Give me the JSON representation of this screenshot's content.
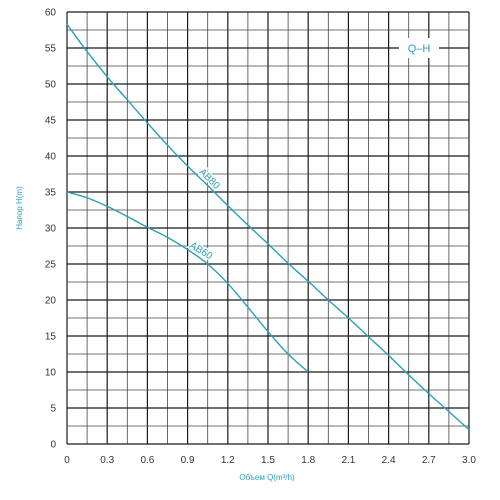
{
  "chart_data": {
    "type": "line",
    "title": "",
    "xlabel": "Объем Q(m³/h)",
    "ylabel": "Напор H(m)",
    "xlim": [
      0,
      3.0
    ],
    "ylim": [
      0,
      60
    ],
    "x_ticks": [
      "0",
      "0.3",
      "0.6",
      "0.9",
      "1.2",
      "1.5",
      "1.8",
      "2.1",
      "2.4",
      "2.7",
      "3.0"
    ],
    "x_tick_values": [
      0,
      0.3,
      0.6,
      0.9,
      1.2,
      1.5,
      1.8,
      2.1,
      2.4,
      2.7,
      3.0
    ],
    "y_ticks": [
      "0",
      "5",
      "10",
      "15",
      "20",
      "25",
      "30",
      "35",
      "40",
      "45",
      "50",
      "55",
      "60"
    ],
    "y_tick_values": [
      0,
      5,
      10,
      15,
      20,
      25,
      30,
      35,
      40,
      45,
      50,
      55,
      60
    ],
    "grid": true,
    "legend": {
      "label": "Q–H",
      "position": "top-right"
    },
    "series": [
      {
        "name": "AB80",
        "x": [
          0,
          0.15,
          0.3,
          0.45,
          0.6,
          0.75,
          0.9,
          1.05,
          1.2,
          1.35,
          1.5,
          1.65,
          1.8,
          1.95,
          2.1,
          2.25,
          2.4,
          2.55,
          2.7,
          2.85,
          3.0
        ],
        "y": [
          58.3,
          54.5,
          51,
          47.8,
          44.6,
          41.5,
          38.6,
          35.9,
          33.1,
          30.4,
          27.8,
          25.1,
          22.6,
          20,
          17.5,
          14.9,
          12.3,
          9.6,
          7,
          4.5,
          2
        ]
      },
      {
        "name": "AB60",
        "x": [
          0,
          0.15,
          0.3,
          0.45,
          0.6,
          0.75,
          0.9,
          1.05,
          1.2,
          1.35,
          1.5,
          1.65,
          1.8
        ],
        "y": [
          35,
          34.2,
          33,
          31.6,
          30.1,
          28.7,
          27,
          25,
          22.3,
          19,
          15.6,
          12.5,
          10
        ]
      }
    ],
    "color": "#2a9fb8"
  }
}
